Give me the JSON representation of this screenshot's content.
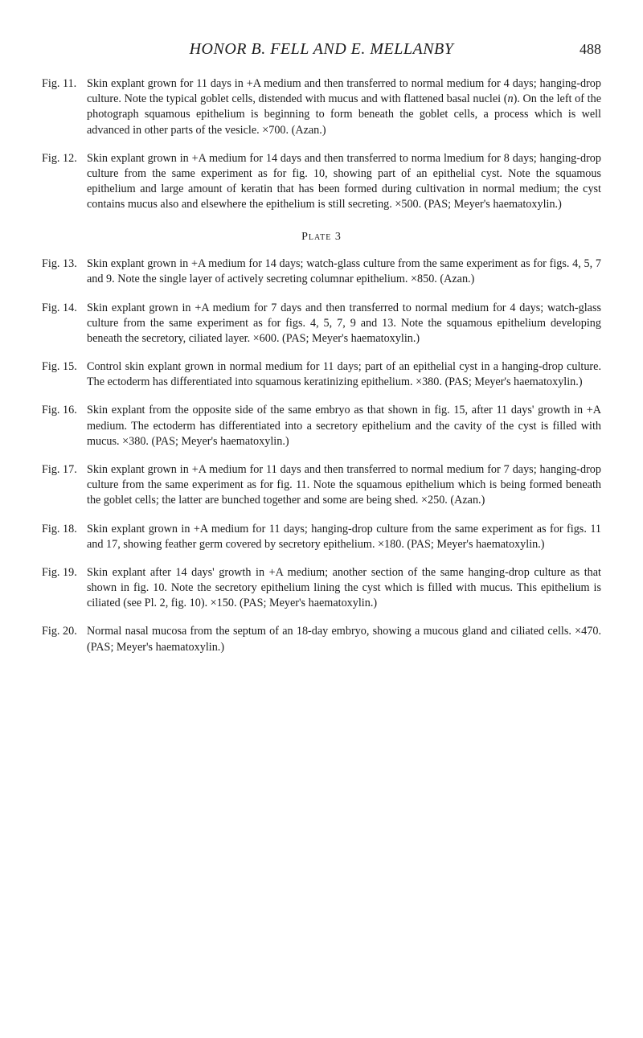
{
  "header": {
    "title": "HONOR B. FELL AND E. MELLANBY",
    "page_number": "488"
  },
  "plate_label": "Plate 3",
  "entries_top": [
    {
      "label": "Fig. 11.",
      "text": "Skin explant grown for 11 days in +A medium and then transferred to normal medium for 4 days; hanging-drop culture. Note the typical goblet cells, distended with mucus and with flattened basal nuclei (n). On the left of the photograph squamous epithelium is beginning to form beneath the goblet cells, a process which is well advanced in other parts of the vesicle. ×700. (Azan.)"
    },
    {
      "label": "Fig. 12.",
      "text": "Skin explant grown in +A medium for 14 days and then transferred to norma lmedium for 8 days; hanging-drop culture from the same experiment as for fig. 10, showing part of an epithelial cyst. Note the squamous epithelium and large amount of keratin that has been formed during cultivation in normal medium; the cyst contains mucus also and elsewhere the epithelium is still secreting. ×500. (PAS; Meyer's haematoxylin.)"
    }
  ],
  "entries_plate": [
    {
      "label": "Fig. 13.",
      "text": "Skin explant grown in +A medium for 14 days; watch-glass culture from the same experiment as for figs. 4, 5, 7 and 9. Note the single layer of actively secreting columnar epithelium. ×850. (Azan.)"
    },
    {
      "label": "Fig. 14.",
      "text": "Skin explant grown in +A medium for 7 days and then transferred to normal medium for 4 days; watch-glass culture from the same experiment as for figs. 4, 5, 7, 9 and 13. Note the squamous epithelium developing beneath the secretory, ciliated layer. ×600. (PAS; Meyer's haematoxylin.)"
    },
    {
      "label": "Fig. 15.",
      "text": "Control skin explant grown in normal medium for 11 days; part of an epithelial cyst in a hanging-drop culture. The ectoderm has differentiated into squamous keratinizing epithelium. ×380. (PAS; Meyer's haematoxylin.)"
    },
    {
      "label": "Fig. 16.",
      "text": "Skin explant from the opposite side of the same embryo as that shown in fig. 15, after 11 days' growth in +A medium. The ectoderm has differentiated into a secretory epithelium and the cavity of the cyst is filled with mucus. ×380. (PAS; Meyer's haematoxylin.)"
    },
    {
      "label": "Fig. 17.",
      "text": "Skin explant grown in +A medium for 11 days and then transferred to normal medium for 7 days; hanging-drop culture from the same experiment as for fig. 11. Note the squamous epithelium which is being formed beneath the goblet cells; the latter are bunched together and some are being shed. ×250. (Azan.)"
    },
    {
      "label": "Fig. 18.",
      "text": "Skin explant grown in +A medium for 11 days; hanging-drop culture from the same experiment as for figs. 11 and 17, showing feather germ covered by secretory epithelium. ×180. (PAS; Meyer's haematoxylin.)"
    },
    {
      "label": "Fig. 19.",
      "text": "Skin explant after 14 days' growth in +A medium; another section of the same hanging-drop culture as that shown in fig. 10. Note the secretory epithelium lining the cyst which is filled with mucus. This epithelium is ciliated (see Pl. 2, fig. 10). ×150. (PAS; Meyer's haematoxylin.)"
    },
    {
      "label": "Fig. 20.",
      "text": "Normal nasal mucosa from the septum of an 18-day embryo, showing a mucous gland and ciliated cells. ×470. (PAS; Meyer's haematoxylin.)"
    }
  ]
}
